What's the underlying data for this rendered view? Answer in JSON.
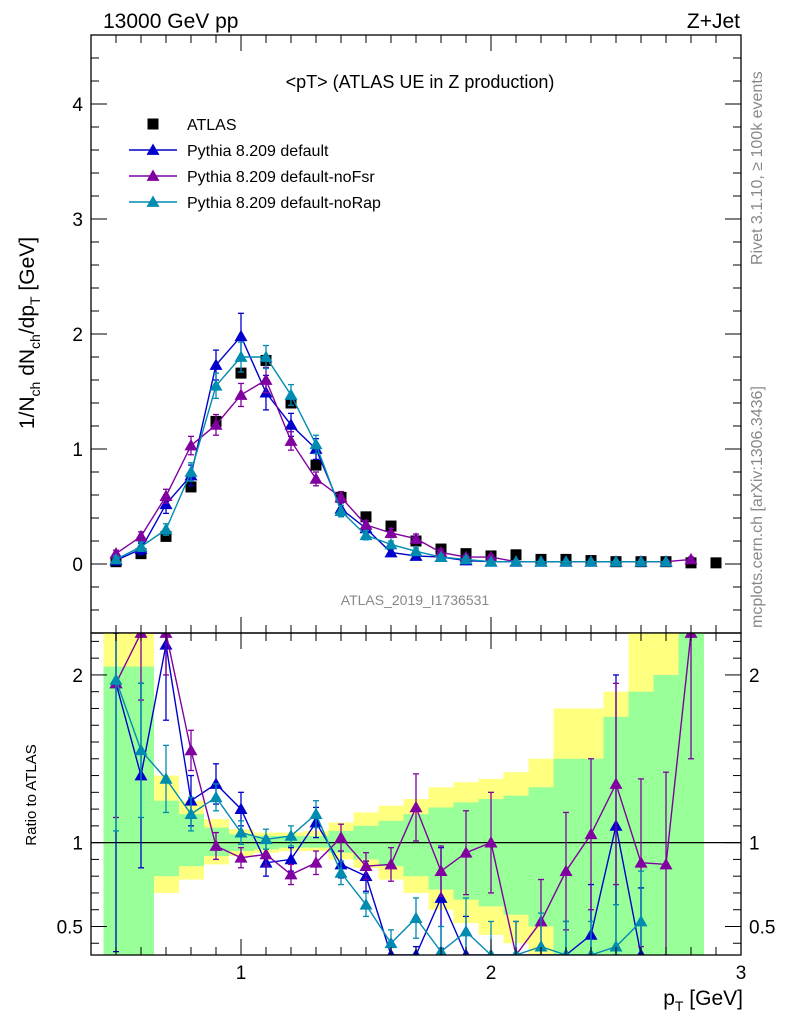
{
  "header": {
    "energy_label": "13000 GeV pp",
    "process_label": "Z+Jet"
  },
  "side_labels": {
    "rivet": "Rivet 3.1.10, ≥ 100k events",
    "mcplots": "mcplots.cern.ch [arXiv:1306.3436]"
  },
  "chart_data": [
    {
      "type": "scatter",
      "title": "<pT> (ATLAS UE in Z production)",
      "ylabel": "1/N_ch dN_ch/dp_T [GeV]",
      "analysis_label": "ATLAS_2019_I1736531",
      "xlim": [
        0.4,
        3.0
      ],
      "ylim": [
        -0.6,
        4.6
      ],
      "yticks": [
        0,
        1,
        2,
        3,
        4
      ],
      "legend_position": "top-left",
      "series": [
        {
          "name": "ATLAS",
          "color": "#000000",
          "marker": "square",
          "x": [
            0.5,
            0.6,
            0.7,
            0.8,
            0.9,
            1.0,
            1.1,
            1.2,
            1.3,
            1.4,
            1.5,
            1.6,
            1.7,
            1.8,
            1.9,
            2.0,
            2.1,
            2.2,
            2.3,
            2.4,
            2.5,
            2.6,
            2.7,
            2.8,
            2.9
          ],
          "y": [
            0.02,
            0.09,
            0.24,
            0.67,
            1.24,
            1.66,
            1.77,
            1.4,
            0.86,
            0.58,
            0.41,
            0.33,
            0.2,
            0.13,
            0.09,
            0.07,
            0.08,
            0.04,
            0.04,
            0.03,
            0.02,
            0.02,
            0.02,
            0.01,
            0.01
          ]
        },
        {
          "name": "Pythia 8.209 default",
          "color": "#0000cc",
          "marker": "triangle",
          "line": true,
          "x": [
            0.5,
            0.6,
            0.7,
            0.8,
            0.9,
            1.0,
            1.1,
            1.2,
            1.3,
            1.4,
            1.5,
            1.6,
            1.7,
            1.8,
            1.9,
            2.0,
            2.1,
            2.2,
            2.3,
            2.4,
            2.5,
            2.6,
            2.7
          ],
          "y": [
            0.03,
            0.13,
            0.52,
            0.77,
            1.73,
            1.98,
            1.49,
            1.21,
            1.0,
            0.48,
            0.31,
            0.1,
            0.07,
            0.06,
            0.03,
            0.02,
            0.02,
            0.02,
            0.02,
            0.02,
            0.02,
            0.02,
            0.02
          ],
          "err": [
            0.03,
            0.05,
            0.08,
            0.09,
            0.13,
            0.2,
            0.15,
            0.1,
            0.09,
            0.06,
            0.04,
            0.03,
            0.03,
            0.02,
            0.02,
            0.01,
            0.01,
            0.01,
            0.01,
            0.01,
            0.01,
            0.01,
            0.01
          ]
        },
        {
          "name": "Pythia 8.209 default-noFsr",
          "color": "#8000a0",
          "marker": "triangle",
          "line": true,
          "x": [
            0.5,
            0.6,
            0.7,
            0.8,
            0.9,
            1.0,
            1.1,
            1.2,
            1.3,
            1.4,
            1.5,
            1.6,
            1.7,
            1.8,
            1.9,
            2.0,
            2.1,
            2.2,
            2.3,
            2.4,
            2.5,
            2.6,
            2.7,
            2.8
          ],
          "y": [
            0.09,
            0.24,
            0.59,
            1.03,
            1.21,
            1.47,
            1.6,
            1.07,
            0.74,
            0.58,
            0.34,
            0.27,
            0.22,
            0.1,
            0.06,
            0.06,
            0.02,
            0.02,
            0.02,
            0.02,
            0.02,
            0.02,
            0.02,
            0.04
          ],
          "err": [
            0.03,
            0.04,
            0.06,
            0.08,
            0.09,
            0.1,
            0.11,
            0.08,
            0.06,
            0.05,
            0.04,
            0.04,
            0.04,
            0.03,
            0.02,
            0.02,
            0.01,
            0.01,
            0.01,
            0.01,
            0.01,
            0.01,
            0.01,
            0.02
          ]
        },
        {
          "name": "Pythia 8.209 default-noRap",
          "color": "#008cb0",
          "marker": "triangle",
          "line": true,
          "x": [
            0.5,
            0.6,
            0.7,
            0.8,
            0.9,
            1.0,
            1.1,
            1.2,
            1.3,
            1.4,
            1.5,
            1.6,
            1.7,
            1.8,
            1.9,
            2.0,
            2.1,
            2.2,
            2.3,
            2.4,
            2.5,
            2.6,
            2.7
          ],
          "y": [
            0.04,
            0.15,
            0.3,
            0.8,
            1.55,
            1.8,
            1.8,
            1.47,
            1.04,
            0.46,
            0.25,
            0.17,
            0.11,
            0.06,
            0.04,
            0.02,
            0.02,
            0.02,
            0.02,
            0.02,
            0.02,
            0.02,
            0.02
          ],
          "err": [
            0.03,
            0.04,
            0.05,
            0.08,
            0.11,
            0.13,
            0.1,
            0.09,
            0.08,
            0.05,
            0.04,
            0.03,
            0.03,
            0.02,
            0.02,
            0.01,
            0.01,
            0.01,
            0.01,
            0.01,
            0.01,
            0.01,
            0.01
          ]
        }
      ]
    },
    {
      "type": "line",
      "ylabel": "Ratio to ATLAS",
      "xlabel": "p_T [GeV]",
      "xlim": [
        0.4,
        3.0
      ],
      "ylim": [
        0.33,
        2.25
      ],
      "yticks": [
        0.5,
        1,
        2
      ],
      "xticks": [
        1,
        2,
        3
      ],
      "bands": {
        "edges": [
          0.45,
          0.55,
          0.65,
          0.75,
          0.85,
          0.95,
          1.05,
          1.15,
          1.25,
          1.35,
          1.45,
          1.55,
          1.65,
          1.75,
          1.85,
          1.95,
          2.05,
          2.15,
          2.25,
          2.35,
          2.45,
          2.55,
          2.65,
          2.75,
          2.85
        ],
        "yellow_lo": [
          0.33,
          0.33,
          0.7,
          0.78,
          0.87,
          0.92,
          0.94,
          0.95,
          0.95,
          0.9,
          0.85,
          0.78,
          0.7,
          0.6,
          0.52,
          0.45,
          0.4,
          0.33,
          0.33,
          0.33,
          0.33,
          0.33,
          0.33,
          0.33
        ],
        "yellow_hi": [
          2.25,
          2.25,
          1.4,
          1.25,
          1.14,
          1.08,
          1.06,
          1.06,
          1.07,
          1.12,
          1.18,
          1.22,
          1.26,
          1.33,
          1.36,
          1.38,
          1.42,
          1.5,
          1.8,
          1.8,
          1.9,
          2.25,
          2.25,
          2.25
        ],
        "green_lo": [
          0.33,
          0.33,
          0.8,
          0.86,
          0.92,
          0.95,
          0.96,
          0.97,
          0.97,
          0.94,
          0.9,
          0.86,
          0.8,
          0.72,
          0.66,
          0.62,
          0.57,
          0.5,
          0.33,
          0.33,
          0.33,
          0.33,
          0.33,
          0.33
        ],
        "green_hi": [
          2.05,
          2.05,
          1.25,
          1.17,
          1.09,
          1.05,
          1.04,
          1.04,
          1.04,
          1.07,
          1.1,
          1.13,
          1.17,
          1.21,
          1.24,
          1.26,
          1.28,
          1.33,
          1.5,
          1.5,
          1.75,
          1.9,
          2.0,
          2.25
        ]
      },
      "series": [
        {
          "name": "Pythia 8.209 default",
          "color": "#0000cc",
          "x": [
            0.5,
            0.6,
            0.7,
            0.8,
            0.9,
            1.0,
            1.1,
            1.2,
            1.3,
            1.4,
            1.5,
            1.6,
            1.7,
            1.8,
            1.9,
            2.3,
            2.4,
            2.5,
            2.6
          ],
          "y": [
            1.95,
            1.4,
            2.18,
            1.25,
            1.35,
            1.2,
            0.88,
            0.9,
            1.12,
            0.87,
            0.8,
            0.28,
            0.28,
            0.67,
            0.31,
            0.33,
            0.45,
            1.1,
            0.33
          ],
          "err": [
            1.6,
            0.55,
            0.45,
            0.15,
            0.12,
            0.1,
            0.08,
            0.07,
            0.09,
            0.08,
            0.09,
            0.1,
            0.1,
            0.3,
            0.25,
            0.2,
            0.3,
            0.9,
            0.4
          ]
        },
        {
          "name": "Pythia 8.209 default-noFsr",
          "color": "#8000a0",
          "x": [
            0.5,
            0.6,
            0.7,
            0.8,
            0.9,
            1.0,
            1.1,
            1.2,
            1.3,
            1.4,
            1.5,
            1.6,
            1.7,
            1.8,
            1.9,
            2.0,
            2.1,
            2.2,
            2.3,
            2.4,
            2.5,
            2.6,
            2.7,
            2.8
          ],
          "y": [
            1.95,
            2.3,
            2.4,
            1.55,
            0.98,
            0.91,
            0.93,
            0.81,
            0.88,
            1.03,
            0.86,
            0.87,
            1.21,
            0.83,
            0.94,
            1.0,
            0.33,
            0.53,
            0.83,
            1.05,
            1.35,
            0.88,
            0.87,
            2.3
          ],
          "err": [
            0.8,
            0.45,
            0.4,
            0.12,
            0.08,
            0.06,
            0.07,
            0.06,
            0.07,
            0.08,
            0.08,
            0.1,
            0.2,
            0.15,
            0.25,
            0.3,
            0.2,
            0.25,
            0.35,
            0.45,
            0.6,
            0.5,
            0.55,
            0.8
          ]
        },
        {
          "name": "Pythia 8.209 default-noRap",
          "color": "#008cb0",
          "x": [
            0.5,
            0.6,
            0.7,
            0.8,
            0.9,
            1.0,
            1.1,
            1.2,
            1.3,
            1.4,
            1.5,
            1.6,
            1.7,
            1.8,
            1.9,
            2.0,
            2.1,
            2.2,
            2.3,
            2.4,
            2.5,
            2.6
          ],
          "y": [
            1.97,
            1.55,
            1.38,
            1.17,
            1.27,
            1.06,
            1.02,
            1.04,
            1.17,
            0.82,
            0.63,
            0.4,
            0.55,
            0.35,
            0.47,
            0.33,
            0.33,
            0.38,
            0.33,
            0.33,
            0.38,
            0.53
          ],
          "err": [
            0.9,
            0.4,
            0.2,
            0.1,
            0.08,
            0.07,
            0.06,
            0.06,
            0.08,
            0.07,
            0.07,
            0.08,
            0.12,
            0.15,
            0.2,
            0.2,
            0.2,
            0.2,
            0.2,
            0.2,
            0.25,
            0.3
          ]
        }
      ]
    }
  ]
}
